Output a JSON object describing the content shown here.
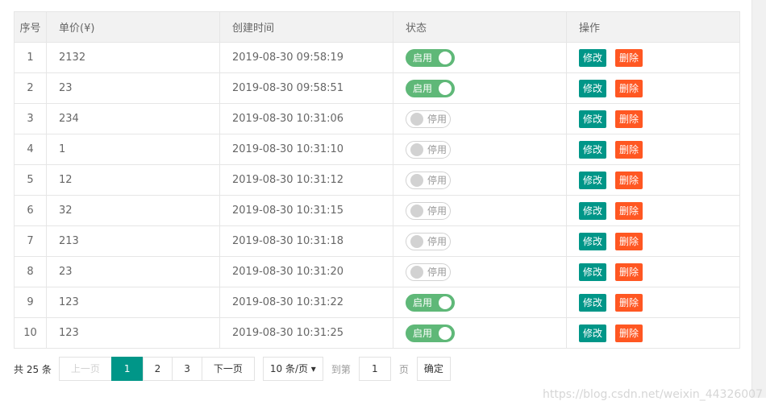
{
  "table": {
    "headers": [
      "序号",
      "单价(¥)",
      "创建时间",
      "状态",
      "操作"
    ],
    "rows": [
      {
        "no": "1",
        "price": "2132",
        "time": "2019-08-30 09:58:19",
        "enabled": true
      },
      {
        "no": "2",
        "price": "23",
        "time": "2019-08-30 09:58:51",
        "enabled": true
      },
      {
        "no": "3",
        "price": "234",
        "time": "2019-08-30 10:31:06",
        "enabled": false
      },
      {
        "no": "4",
        "price": "1",
        "time": "2019-08-30 10:31:10",
        "enabled": false
      },
      {
        "no": "5",
        "price": "12",
        "time": "2019-08-30 10:31:12",
        "enabled": false
      },
      {
        "no": "6",
        "price": "32",
        "time": "2019-08-30 10:31:15",
        "enabled": false
      },
      {
        "no": "7",
        "price": "213",
        "time": "2019-08-30 10:31:18",
        "enabled": false
      },
      {
        "no": "8",
        "price": "23",
        "time": "2019-08-30 10:31:20",
        "enabled": false
      },
      {
        "no": "9",
        "price": "123",
        "time": "2019-08-30 10:31:22",
        "enabled": true
      },
      {
        "no": "10",
        "price": "123",
        "time": "2019-08-30 10:31:25",
        "enabled": true
      }
    ],
    "on_label": "启用",
    "off_label": "停用",
    "edit_label": "修改",
    "delete_label": "删除"
  },
  "pager": {
    "total": "共 25 条",
    "prev": "上一页",
    "pages": [
      "1",
      "2",
      "3"
    ],
    "current": "1",
    "next": "下一页",
    "page_size": "10 条/页 ▾",
    "goto": "到第",
    "goto_value": "1",
    "page_unit": "页",
    "confirm": "确定"
  },
  "watermark": "https://blog.csdn.net/weixin_44326007",
  "colors": {
    "accent": "#009688",
    "switch_on": "#5FB878",
    "danger": "#FF5722"
  }
}
